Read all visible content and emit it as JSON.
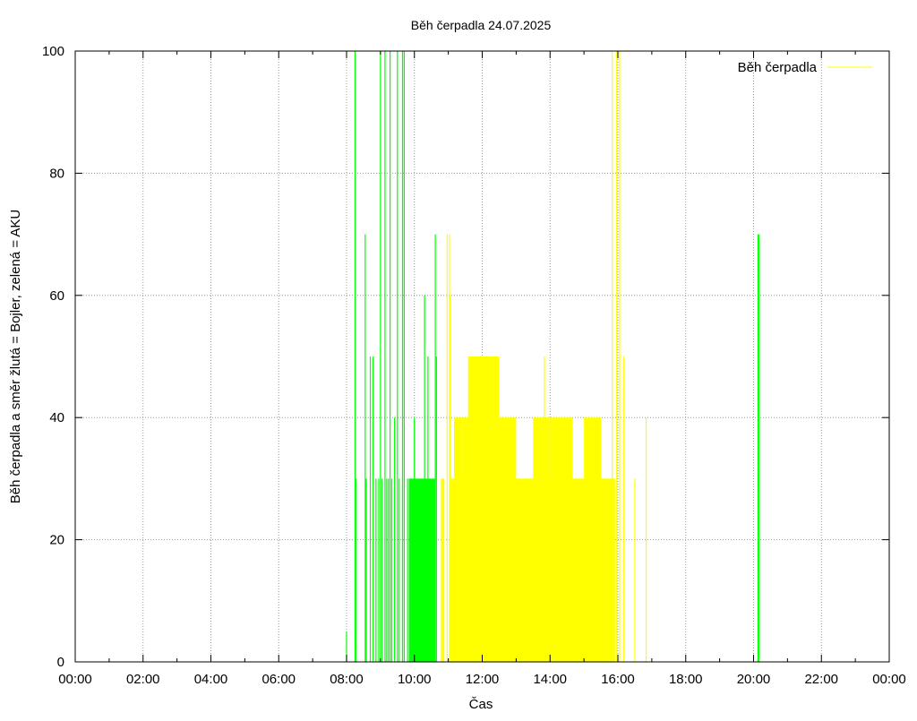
{
  "chart_data": {
    "type": "area",
    "title": "Běh čerpadla 24.07.2025",
    "xlabel": "Čas",
    "ylabel": "Běh čerpadla a směr žlutá = Bojler, zelená = AKU",
    "xlim": [
      "00:00",
      "24:00"
    ],
    "ylim": [
      0,
      100
    ],
    "x_ticks": [
      "00:00",
      "02:00",
      "04:00",
      "06:00",
      "08:00",
      "10:00",
      "12:00",
      "14:00",
      "16:00",
      "18:00",
      "20:00",
      "22:00",
      "00:00"
    ],
    "y_ticks": [
      "0",
      "20",
      "40",
      "60",
      "80",
      "100"
    ],
    "grid": true,
    "legend": {
      "position": "top-right",
      "entries": [
        {
          "label": "Běh čerpadla",
          "color": "#ffff00"
        }
      ]
    },
    "series": [
      {
        "color": "#00ff00",
        "spikes": [
          [
            "08:00",
            5
          ],
          [
            "08:15",
            100
          ],
          [
            "08:17",
            30
          ],
          [
            "08:33",
            70
          ],
          [
            "08:35",
            30
          ],
          [
            "08:42",
            50
          ],
          [
            "08:47",
            50
          ],
          [
            "08:52",
            30
          ],
          [
            "08:57",
            30
          ],
          [
            "09:00",
            100
          ],
          [
            "09:03",
            30
          ],
          [
            "09:08",
            100
          ],
          [
            "09:11",
            30
          ],
          [
            "09:14",
            30
          ],
          [
            "09:17",
            100
          ],
          [
            "09:20",
            30
          ],
          [
            "09:25",
            40
          ],
          [
            "09:30",
            100
          ],
          [
            "09:33",
            30
          ],
          [
            "09:39",
            100
          ],
          [
            "09:42",
            100
          ],
          [
            "09:48",
            30
          ],
          [
            "10:00",
            40
          ],
          [
            "10:18",
            60
          ],
          [
            "10:24",
            50
          ],
          [
            "10:37",
            70
          ],
          [
            "10:39",
            50
          ],
          [
            "20:08",
            70
          ],
          [
            "20:10",
            70
          ]
        ],
        "blocks": [
          [
            "09:50",
            "10:37",
            30
          ]
        ]
      },
      {
        "color": "#ffff00",
        "spikes": [
          [
            "10:58",
            70
          ],
          [
            "11:02",
            70
          ],
          [
            "11:04",
            60
          ],
          [
            "13:50",
            50
          ],
          [
            "15:50",
            100
          ],
          [
            "15:58",
            100
          ],
          [
            "16:03",
            100
          ],
          [
            "16:10",
            50
          ],
          [
            "16:30",
            30
          ],
          [
            "16:50",
            40
          ]
        ],
        "blocks": [
          [
            "10:47",
            "10:53",
            30
          ],
          [
            "11:05",
            "11:10",
            30
          ],
          [
            "11:10",
            "11:25",
            40
          ],
          [
            "11:25",
            "11:40",
            40
          ],
          [
            "11:35",
            "12:30",
            50
          ],
          [
            "12:30",
            "13:00",
            40
          ],
          [
            "13:00",
            "13:30",
            30
          ],
          [
            "13:30",
            "14:00",
            40
          ],
          [
            "14:00",
            "14:40",
            40
          ],
          [
            "14:40",
            "15:00",
            30
          ],
          [
            "15:00",
            "15:30",
            40
          ],
          [
            "15:30",
            "15:48",
            30
          ],
          [
            "11:08",
            "15:48",
            30
          ],
          [
            "15:48",
            "15:55",
            30
          ]
        ]
      }
    ]
  }
}
